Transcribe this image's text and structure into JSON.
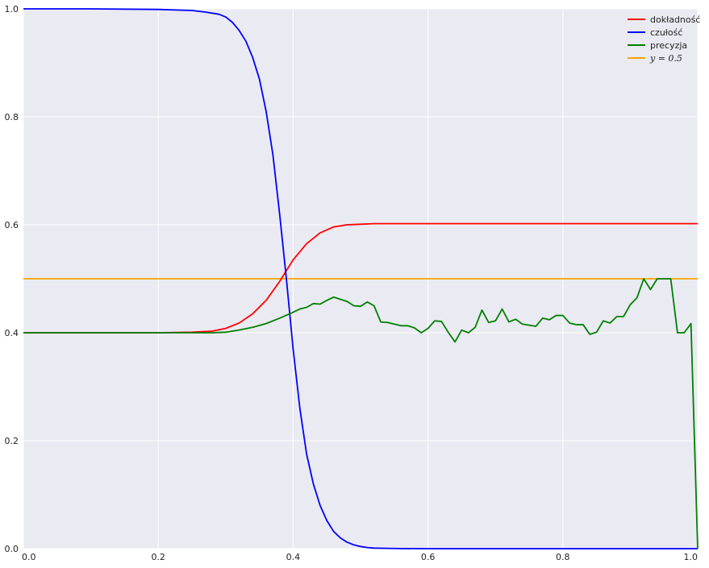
{
  "chart_data": {
    "type": "line",
    "title": "",
    "xlabel": "",
    "ylabel": "",
    "xlim": [
      0,
      1
    ],
    "ylim": [
      0,
      1
    ],
    "grid": true,
    "legend_position": "top-right",
    "x_ticks": [
      "0.0",
      "0.2",
      "0.4",
      "0.6",
      "0.8",
      "1.0"
    ],
    "y_ticks": [
      "0.0",
      "0.2",
      "0.4",
      "0.6",
      "0.8",
      "1.0"
    ],
    "series": [
      {
        "name": "dokładność",
        "color": "#ff0000",
        "x": [
          0.0,
          0.1,
          0.2,
          0.25,
          0.28,
          0.3,
          0.32,
          0.34,
          0.36,
          0.38,
          0.4,
          0.42,
          0.44,
          0.46,
          0.48,
          0.5,
          0.52,
          0.55,
          0.6,
          0.7,
          0.8,
          0.9,
          1.0
        ],
        "values": [
          0.4,
          0.4,
          0.4,
          0.401,
          0.403,
          0.408,
          0.418,
          0.435,
          0.46,
          0.495,
          0.535,
          0.565,
          0.585,
          0.596,
          0.6,
          0.601,
          0.602,
          0.602,
          0.602,
          0.602,
          0.602,
          0.602,
          0.602
        ]
      },
      {
        "name": "czułość",
        "color": "#0000ff",
        "x": [
          0.0,
          0.1,
          0.2,
          0.25,
          0.27,
          0.29,
          0.3,
          0.31,
          0.32,
          0.33,
          0.34,
          0.35,
          0.36,
          0.37,
          0.38,
          0.39,
          0.4,
          0.41,
          0.42,
          0.43,
          0.44,
          0.45,
          0.46,
          0.47,
          0.48,
          0.49,
          0.5,
          0.51,
          0.52,
          0.54,
          0.56,
          0.6,
          0.7,
          0.8,
          0.9,
          1.0
        ],
        "values": [
          1.0,
          1.0,
          0.999,
          0.997,
          0.994,
          0.99,
          0.985,
          0.975,
          0.96,
          0.94,
          0.91,
          0.87,
          0.81,
          0.73,
          0.62,
          0.5,
          0.37,
          0.26,
          0.175,
          0.12,
          0.08,
          0.052,
          0.032,
          0.02,
          0.012,
          0.007,
          0.004,
          0.002,
          0.001,
          0.0005,
          0.0002,
          0.0,
          0.0,
          0.0,
          0.0,
          0.0
        ]
      },
      {
        "name": "precyzja",
        "color": "#008000",
        "x": [
          0.0,
          0.1,
          0.2,
          0.25,
          0.28,
          0.3,
          0.32,
          0.34,
          0.36,
          0.38,
          0.4,
          0.41,
          0.42,
          0.43,
          0.44,
          0.45,
          0.46,
          0.47,
          0.48,
          0.49,
          0.5,
          0.51,
          0.52,
          0.53,
          0.54,
          0.55,
          0.56,
          0.57,
          0.58,
          0.59,
          0.6,
          0.61,
          0.62,
          0.63,
          0.64,
          0.65,
          0.66,
          0.67,
          0.68,
          0.69,
          0.7,
          0.71,
          0.72,
          0.73,
          0.74,
          0.75,
          0.76,
          0.77,
          0.78,
          0.79,
          0.8,
          0.81,
          0.82,
          0.83,
          0.84,
          0.85,
          0.86,
          0.87,
          0.88,
          0.89,
          0.9,
          0.91,
          0.92,
          0.93,
          0.94,
          0.95,
          0.96,
          0.97,
          0.98,
          0.99,
          1.0
        ],
        "values": [
          0.4,
          0.4,
          0.4,
          0.4,
          0.4,
          0.401,
          0.405,
          0.41,
          0.417,
          0.427,
          0.438,
          0.444,
          0.447,
          0.454,
          0.453,
          0.46,
          0.466,
          0.462,
          0.458,
          0.45,
          0.449,
          0.457,
          0.45,
          0.42,
          0.419,
          0.416,
          0.413,
          0.413,
          0.409,
          0.4,
          0.408,
          0.422,
          0.421,
          0.401,
          0.383,
          0.405,
          0.4,
          0.41,
          0.442,
          0.419,
          0.422,
          0.444,
          0.42,
          0.425,
          0.416,
          0.414,
          0.412,
          0.427,
          0.424,
          0.432,
          0.432,
          0.418,
          0.415,
          0.415,
          0.397,
          0.401,
          0.422,
          0.418,
          0.43,
          0.43,
          0.452,
          0.465,
          0.5,
          0.48,
          0.5,
          0.5,
          0.5,
          0.4,
          0.4,
          0.417,
          0.0
        ]
      },
      {
        "name": "y = 0.5",
        "color": "#ffa500",
        "x": [
          0.0,
          1.0
        ],
        "values": [
          0.5,
          0.5
        ]
      }
    ]
  }
}
